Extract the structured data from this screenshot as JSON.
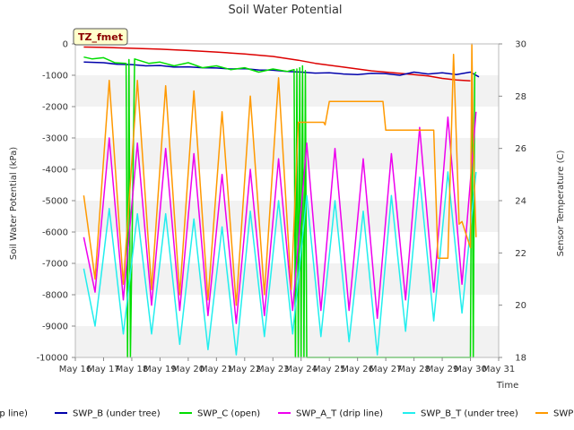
{
  "chart_data": {
    "type": "line",
    "title": "Soil Water Potential",
    "xlabel": "Time",
    "ylabel": "Soil Water Potential (kPa)",
    "y2label": "Sensor Temperature (C)",
    "ylim": [
      -10000,
      0
    ],
    "y2lim": [
      18,
      30
    ],
    "xlim": [
      16,
      31
    ],
    "x_ticks": [
      "May 16",
      "May 17",
      "May 18",
      "May 19",
      "May 20",
      "May 21",
      "May 22",
      "May 23",
      "May 24",
      "May 25",
      "May 26",
      "May 27",
      "May 28",
      "May 29",
      "May 30",
      "May 31"
    ],
    "y_ticks": [
      "0",
      "-1000",
      "-2000",
      "-3000",
      "-4000",
      "-5000",
      "-6000",
      "-7000",
      "-8000",
      "-9000",
      "-10000"
    ],
    "y2_ticks": [
      "18",
      "20",
      "22",
      "24",
      "26",
      "28",
      "30"
    ],
    "grid": "horizontal bands",
    "legend_position": "bottom",
    "annotation": "TZ_fmet",
    "legend_labels": [
      "SWP_A (drip line)",
      "SWP_B (under tree)",
      "SWP_C (open)",
      "SWP_A_T (drip line)",
      "SWP_B_T (under tree)",
      "SWP"
    ],
    "series": [
      {
        "name": "SWP_A (drip line)",
        "axis": "left",
        "color": "#dd0000",
        "x": [
          16.3,
          17.0,
          18.0,
          19.0,
          20.0,
          21.0,
          22.0,
          23.0,
          23.9,
          24.5,
          25.5,
          26.5,
          27.5,
          28.5,
          29.0,
          29.5,
          30.0
        ],
        "y": [
          -100,
          -110,
          -140,
          -170,
          -210,
          -260,
          -320,
          -400,
          -520,
          -620,
          -740,
          -860,
          -940,
          -1020,
          -1100,
          -1150,
          -1180
        ]
      },
      {
        "name": "SWP_B (under tree)",
        "axis": "left",
        "color": "#0000aa",
        "x": [
          16.3,
          17.0,
          17.5,
          18.0,
          18.5,
          19.0,
          19.5,
          20.0,
          20.5,
          21.0,
          21.5,
          22.0,
          22.5,
          23.0,
          23.5,
          24.0,
          24.5,
          25.0,
          25.5,
          26.0,
          26.5,
          27.0,
          27.5,
          28.0,
          28.5,
          29.0,
          29.5,
          30.0,
          30.3
        ],
        "y": [
          -580,
          -600,
          -650,
          -660,
          -700,
          -690,
          -740,
          -730,
          -760,
          -770,
          -800,
          -790,
          -830,
          -840,
          -880,
          -900,
          -930,
          -920,
          -960,
          -980,
          -940,
          -950,
          -1000,
          -900,
          -960,
          -920,
          -980,
          -900,
          -1050
        ]
      },
      {
        "name": "SWP_C (open)",
        "axis": "left",
        "color": "#00dd00",
        "x": [
          16.3,
          16.6,
          17.0,
          17.4,
          17.8,
          17.85,
          17.9,
          17.95,
          18.1,
          18.6,
          19.0,
          19.5,
          20.0,
          20.5,
          21.0,
          21.5,
          22.0,
          22.5,
          23.0,
          23.5,
          23.75,
          23.8,
          23.85,
          23.9,
          23.95,
          24.0,
          24.05,
          24.1,
          24.15,
          24.2,
          30.0,
          30.05,
          30.1,
          30.15,
          30.2
        ],
        "y": [
          -420,
          -480,
          -440,
          -600,
          -620,
          -10000,
          -500,
          -10000,
          -480,
          -620,
          -580,
          -700,
          -600,
          -760,
          -700,
          -820,
          -760,
          -900,
          -800,
          -880,
          -820,
          -10000,
          -800,
          -10000,
          -760,
          -10000,
          -700,
          -10000,
          -850,
          -10000,
          -10000,
          -900,
          -10000,
          -950,
          -900
        ]
      },
      {
        "name": "SWP_A_T (drip line)",
        "axis": "right",
        "color": "#ee00ee",
        "x": [
          16.3,
          16.7,
          17.2,
          17.7,
          18.2,
          18.7,
          19.2,
          19.7,
          20.2,
          20.7,
          21.2,
          21.7,
          22.2,
          22.7,
          23.2,
          23.7,
          24.2,
          24.7,
          25.2,
          25.7,
          26.2,
          26.7,
          27.2,
          27.7,
          28.2,
          28.7,
          29.2,
          29.7,
          30.2
        ],
        "y": [
          22.6,
          20.5,
          26.4,
          20.2,
          26.2,
          20.0,
          26.0,
          19.8,
          25.8,
          19.6,
          25.0,
          19.3,
          25.2,
          19.6,
          25.6,
          19.8,
          26.2,
          19.8,
          26.0,
          19.8,
          25.6,
          19.5,
          25.8,
          20.2,
          26.8,
          20.5,
          27.2,
          20.8,
          27.4
        ]
      },
      {
        "name": "SWP_B_T (under tree)",
        "axis": "right",
        "color": "#22eeee",
        "x": [
          16.3,
          16.7,
          17.2,
          17.7,
          18.2,
          18.7,
          19.2,
          19.7,
          20.2,
          20.7,
          21.2,
          21.7,
          22.2,
          22.7,
          23.2,
          23.7,
          24.2,
          24.7,
          25.2,
          25.7,
          26.2,
          26.7,
          27.2,
          27.7,
          28.2,
          28.7,
          29.2,
          29.7,
          30.2
        ],
        "y": [
          21.4,
          19.2,
          23.7,
          18.9,
          23.5,
          18.9,
          23.5,
          18.5,
          23.3,
          18.3,
          23.0,
          18.1,
          23.6,
          18.8,
          24.0,
          18.9,
          24.2,
          18.8,
          24.0,
          18.6,
          23.6,
          18.1,
          24.2,
          19.0,
          24.9,
          19.4,
          25.1,
          19.7,
          25.1
        ]
      },
      {
        "name": "SWP",
        "axis": "right",
        "color": "#ff9900",
        "x": [
          16.3,
          16.7,
          17.2,
          17.7,
          18.2,
          18.7,
          19.2,
          19.7,
          20.2,
          20.7,
          21.2,
          21.7,
          22.2,
          22.7,
          23.2,
          23.65,
          23.9,
          24.3,
          24.8,
          24.85,
          25.0,
          26.2,
          26.9,
          27.0,
          28.3,
          28.35,
          28.7,
          28.85,
          28.9,
          29.2,
          29.4,
          29.5,
          29.6,
          29.7,
          30.0,
          30.05,
          30.1,
          30.2
        ],
        "y": [
          24.2,
          21.0,
          28.6,
          20.8,
          28.6,
          20.6,
          28.4,
          20.4,
          28.2,
          20.2,
          27.4,
          20.0,
          28.0,
          20.4,
          28.7,
          20.6,
          27.0,
          27.0,
          27.0,
          26.9,
          27.8,
          27.8,
          27.8,
          26.7,
          26.7,
          26.7,
          26.7,
          21.8,
          21.8,
          21.8,
          29.6,
          26.4,
          23.1,
          23.2,
          22.2,
          30.0,
          26.0,
          22.6
        ]
      }
    ]
  }
}
